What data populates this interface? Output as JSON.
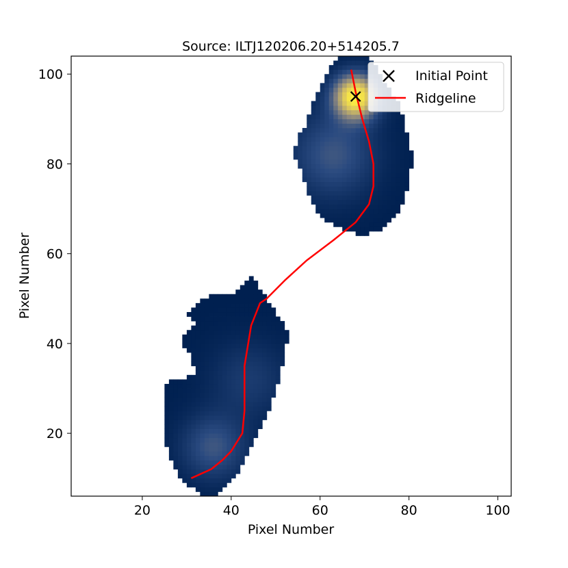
{
  "chart_data": {
    "type": "heatmap",
    "title": "Source: ILTJ120206.20+514205.7",
    "xlabel": "Pixel Number",
    "ylabel": "Pixel Number",
    "xlim": [
      4,
      103
    ],
    "ylim": [
      6,
      104
    ],
    "x_ticks": [
      20,
      40,
      60,
      80,
      100
    ],
    "y_ticks": [
      20,
      40,
      60,
      80,
      100
    ],
    "grid": false,
    "legend_position": "top-right",
    "colormap": [
      "#002050",
      "#2a4a80",
      "#8a8680",
      "#d6c060",
      "#fff040"
    ],
    "blobs": [
      {
        "name": "north lobe",
        "outline": [
          [
            65,
            104
          ],
          [
            70,
            104
          ],
          [
            73,
            102
          ],
          [
            74,
            99
          ],
          [
            76,
            96
          ],
          [
            78,
            93
          ],
          [
            79,
            89
          ],
          [
            80,
            85
          ],
          [
            81,
            81
          ],
          [
            80,
            76
          ],
          [
            79,
            72
          ],
          [
            78,
            69
          ],
          [
            76,
            67
          ],
          [
            73,
            65
          ],
          [
            70,
            64
          ],
          [
            66,
            65
          ],
          [
            62,
            67
          ],
          [
            59,
            70
          ],
          [
            57,
            74
          ],
          [
            56,
            78
          ],
          [
            54,
            82
          ],
          [
            55,
            86
          ],
          [
            57,
            89
          ],
          [
            58,
            93
          ],
          [
            60,
            97
          ],
          [
            62,
            101
          ]
        ],
        "peaks": [
          {
            "x": 68,
            "y": 95,
            "amp": 1.0,
            "sigma": 3.5
          },
          {
            "x": 63,
            "y": 82,
            "amp": 0.3,
            "sigma": 6.5
          }
        ]
      },
      {
        "name": "south lobe",
        "outline": [
          [
            45,
            55
          ],
          [
            46,
            53
          ],
          [
            48,
            50
          ],
          [
            50,
            47
          ],
          [
            52,
            45
          ],
          [
            53,
            42
          ],
          [
            52,
            37
          ],
          [
            51,
            33
          ],
          [
            50,
            29
          ],
          [
            48,
            24
          ],
          [
            46,
            20
          ],
          [
            44,
            16
          ],
          [
            42,
            12
          ],
          [
            40,
            9
          ],
          [
            37,
            6
          ],
          [
            34,
            6
          ],
          [
            31,
            8
          ],
          [
            28,
            11
          ],
          [
            26,
            15
          ],
          [
            25,
            19
          ],
          [
            25,
            25
          ],
          [
            25,
            29
          ],
          [
            26,
            32
          ],
          [
            29,
            32
          ],
          [
            32,
            33
          ],
          [
            31,
            37
          ],
          [
            29,
            40
          ],
          [
            30,
            43
          ],
          [
            33,
            44
          ],
          [
            30,
            46
          ],
          [
            31,
            48
          ],
          [
            34,
            50
          ],
          [
            37,
            51
          ],
          [
            40,
            51
          ],
          [
            43,
            53
          ]
        ],
        "peaks": [
          {
            "x": 36,
            "y": 17,
            "amp": 0.3,
            "sigma": 5.0
          },
          {
            "x": 44,
            "y": 32,
            "amp": 0.16,
            "sigma": 6.0
          }
        ]
      }
    ],
    "series": [
      {
        "name": "Initial Point",
        "type": "scatter",
        "marker": "x",
        "color": "#000000",
        "x": [
          68
        ],
        "y": [
          95
        ]
      },
      {
        "name": "Ridgeline",
        "type": "line",
        "color": "#ff0000",
        "x": [
          67,
          68,
          69.5,
          71,
          72,
          72,
          71,
          68,
          63,
          57,
          52,
          48,
          46.5,
          44.5,
          43,
          43,
          42.5,
          40,
          38,
          35.5,
          31
        ],
        "y": [
          101,
          96,
          90,
          85,
          80,
          75,
          71,
          67,
          63,
          58.5,
          54,
          50,
          49,
          44,
          35,
          25,
          20,
          16,
          14,
          12,
          10
        ]
      }
    ]
  }
}
